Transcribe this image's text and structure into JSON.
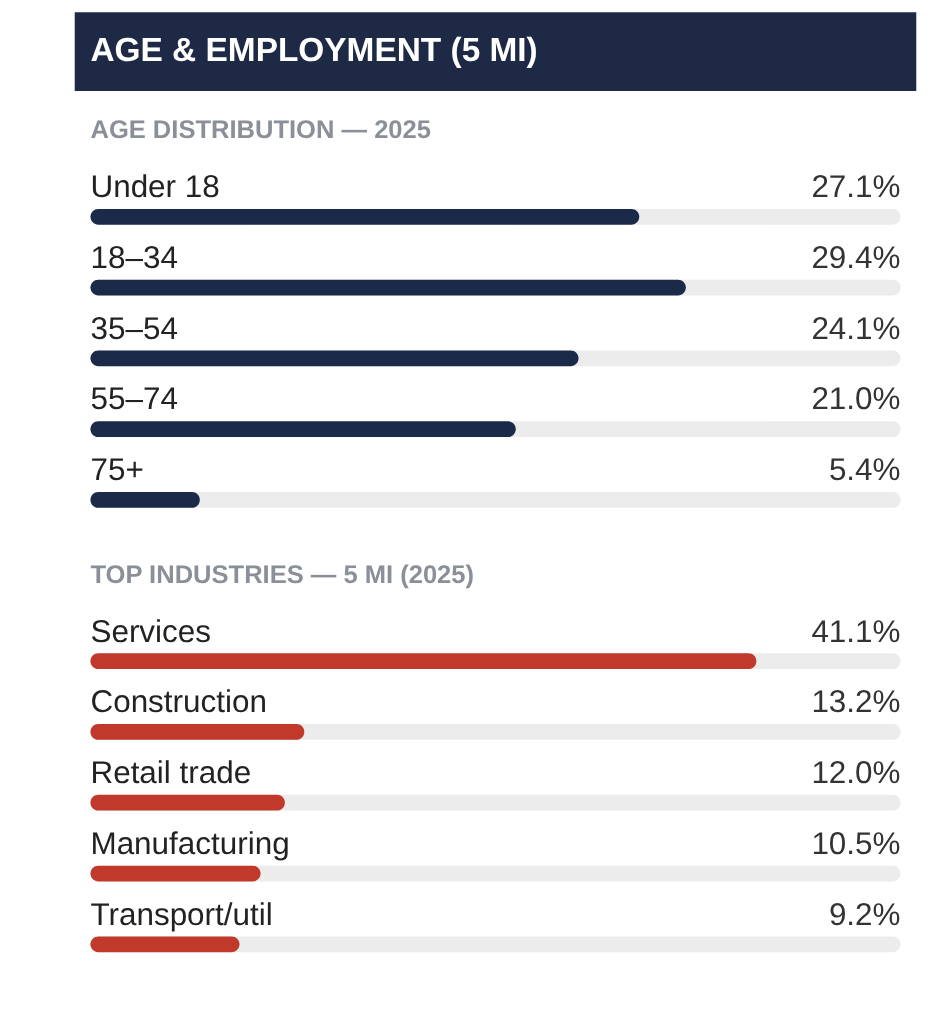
{
  "chart_data": [
    {
      "type": "other",
      "title": "AGE & EMPLOYMENT (5 MI)"
    },
    {
      "type": "bar",
      "orientation": "horizontal",
      "title": "AGE DISTRIBUTION — 2025",
      "categories": [
        "Under 18",
        "18–34",
        "35–54",
        "55–74",
        "75+"
      ],
      "values": [
        27.1,
        29.4,
        24.1,
        21.0,
        5.4
      ],
      "value_labels": [
        "27.1%",
        "29.4%",
        "24.1%",
        "21.0%",
        "5.4%"
      ],
      "color": "#1c2a4a",
      "xlim": [
        0,
        40
      ],
      "tick_labels": false
    },
    {
      "type": "bar",
      "orientation": "horizontal",
      "title": "TOP INDUSTRIES — 5 MI (2025)",
      "categories": [
        "Services",
        "Construction",
        "Retail trade",
        "Manufacturing",
        "Transport/util"
      ],
      "values": [
        41.1,
        13.2,
        12.0,
        10.5,
        9.2
      ],
      "value_labels": [
        "41.1%",
        "13.2%",
        "12.0%",
        "10.5%",
        "9.2%"
      ],
      "color": "#c0392b",
      "xlim": [
        0,
        50
      ],
      "tick_labels": false
    }
  ]
}
